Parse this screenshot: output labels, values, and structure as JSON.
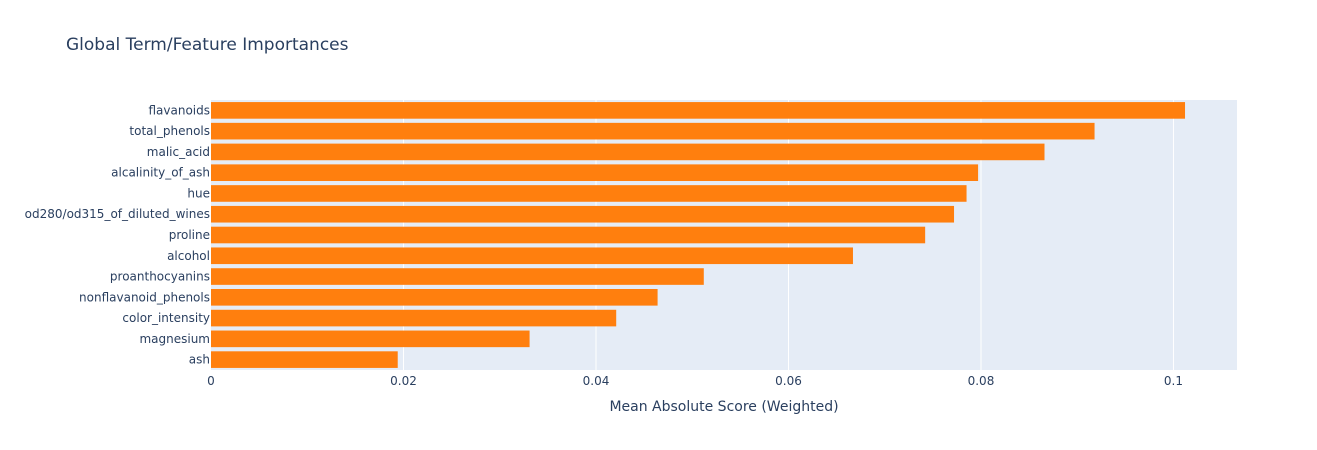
{
  "chart_data": {
    "type": "bar",
    "orientation": "horizontal",
    "title": "Global Term/Feature Importances",
    "xlabel": "Mean Absolute Score (Weighted)",
    "ylabel": "",
    "xlim": [
      0,
      0.1066
    ],
    "xticks": [
      0,
      0.02,
      0.04,
      0.06,
      0.08,
      0.1
    ],
    "xtick_labels": [
      "0",
      "0.02",
      "0.04",
      "0.06",
      "0.08",
      "0.1"
    ],
    "grid": true,
    "legend": "none",
    "categories": [
      "flavanoids",
      "total_phenols",
      "malic_acid",
      "alcalinity_of_ash",
      "hue",
      "od280/od315_of_diluted_wines",
      "proline",
      "alcohol",
      "proanthocyanins",
      "nonflavanoid_phenols",
      "color_intensity",
      "magnesium",
      "ash"
    ],
    "values": [
      0.1012,
      0.0918,
      0.0866,
      0.0797,
      0.0785,
      0.0772,
      0.0742,
      0.0667,
      0.0512,
      0.0464,
      0.0421,
      0.0331,
      0.0194
    ],
    "colors": {
      "bar": "#ff7f0e",
      "plot_bg": "#e5ecf6",
      "grid": "#ffffff",
      "text": "#2a3f5f"
    }
  }
}
